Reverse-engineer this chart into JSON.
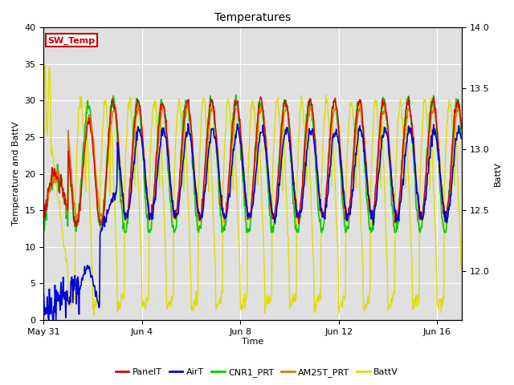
{
  "title": "Temperatures",
  "ylabel_left": "Temperature and BattV",
  "ylabel_right": "BattV",
  "xlabel": "Time",
  "ylim_left": [
    0,
    40
  ],
  "ylim_right": [
    11.6,
    14.0
  ],
  "xtick_labels": [
    "May 31",
    "Jun 4",
    "Jun 8",
    "Jun 12",
    "Jun 16"
  ],
  "legend_entries": [
    "PanelT",
    "AirT",
    "CNR1_PRT",
    "AM25T_PRT",
    "BattV"
  ],
  "legend_colors": [
    "#dd0000",
    "#0000dd",
    "#00cc00",
    "#dd7700",
    "#dddd00"
  ],
  "sw_temp_label": "SW_Temp",
  "sw_temp_color": "#cc0000",
  "plot_bg_color": "#e0e0e0",
  "fig_bg_color": "#ffffff",
  "title_fontsize": 10,
  "axis_fontsize": 8,
  "legend_fontsize": 8,
  "grid_color": "#ffffff",
  "xlim_days": 17,
  "samples_per_day": 48
}
